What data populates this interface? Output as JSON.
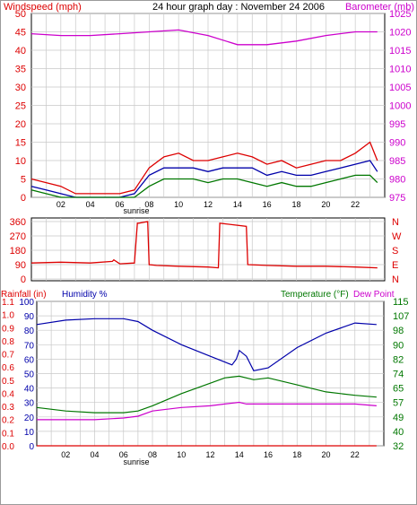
{
  "header": {
    "left_label": "Windspeed (mph)",
    "title": "24 hour graph day : November 24 2006",
    "right_label": "Barometer (mb)"
  },
  "colors": {
    "red": "#dd0000",
    "blue": "#0000aa",
    "green": "#007700",
    "magenta": "#cc00cc",
    "grid": "#c8c8c8"
  },
  "chart_data": [
    {
      "type": "line",
      "id": "wind-baro",
      "x_ticks": [
        "02",
        "04",
        "06",
        "08",
        "10",
        "12",
        "14",
        "16",
        "18",
        "20",
        "22"
      ],
      "sunrise_label": "sunrise",
      "left_axis": {
        "label": "Windspeed (mph)",
        "ticks": [
          0,
          5,
          10,
          15,
          20,
          25,
          30,
          35,
          40,
          45,
          50
        ],
        "ylim": [
          0,
          50
        ]
      },
      "right_axis": {
        "label": "Barometer (mb)",
        "ticks": [
          975,
          980,
          985,
          990,
          995,
          1000,
          1005,
          1010,
          1015,
          1020,
          1025
        ],
        "ylim": [
          975,
          1025
        ]
      },
      "series": [
        {
          "axis": "right",
          "color": "magenta",
          "x": [
            0,
            2,
            4,
            6,
            8,
            10,
            12,
            14,
            16,
            18,
            20,
            22,
            23.5
          ],
          "y": [
            1019.5,
            1019,
            1019,
            1019.5,
            1020,
            1020.5,
            1019,
            1016.5,
            1016.5,
            1017.5,
            1019,
            1020,
            1020
          ]
        },
        {
          "axis": "left",
          "color": "red",
          "x": [
            0,
            1,
            2,
            3,
            4,
            5,
            6,
            7,
            8,
            9,
            10,
            11,
            12,
            13,
            14,
            15,
            16,
            17,
            18,
            19,
            20,
            21,
            22,
            23,
            23.5
          ],
          "y": [
            5,
            4,
            3,
            1,
            1,
            1,
            1,
            2,
            8,
            11,
            12,
            10,
            10,
            11,
            12,
            11,
            9,
            10,
            8,
            9,
            10,
            10,
            12,
            15,
            10
          ]
        },
        {
          "axis": "left",
          "color": "blue",
          "x": [
            0,
            1,
            2,
            3,
            4,
            5,
            6,
            7,
            8,
            9,
            10,
            11,
            12,
            13,
            14,
            15,
            16,
            17,
            18,
            19,
            20,
            21,
            22,
            23,
            23.5
          ],
          "y": [
            3,
            2,
            1,
            0,
            0,
            0,
            0,
            1,
            6,
            8,
            8,
            8,
            7,
            8,
            8,
            8,
            6,
            7,
            6,
            6,
            7,
            8,
            9,
            10,
            7
          ]
        },
        {
          "axis": "left",
          "color": "green",
          "x": [
            0,
            1,
            2,
            3,
            4,
            5,
            6,
            7,
            8,
            9,
            10,
            11,
            12,
            13,
            14,
            15,
            16,
            17,
            18,
            19,
            20,
            21,
            22,
            23,
            23.5
          ],
          "y": [
            2,
            1,
            0,
            0,
            0,
            0,
            0,
            0,
            3,
            5,
            5,
            5,
            4,
            5,
            5,
            4,
            3,
            4,
            3,
            3,
            4,
            5,
            6,
            6,
            4
          ]
        }
      ]
    },
    {
      "type": "line",
      "id": "wind-direction",
      "left_axis": {
        "ticks": [
          0,
          90,
          180,
          270,
          360
        ],
        "ylim": [
          0,
          360
        ]
      },
      "right_axis": {
        "ticks": [
          "N",
          "W",
          "S",
          "E",
          "N"
        ]
      },
      "series": [
        {
          "color": "red",
          "x": [
            0,
            2,
            4,
            5.5,
            5.6,
            6,
            7,
            7.2,
            7.3,
            7.9,
            8,
            8.5,
            10,
            12,
            12.7,
            12.8,
            14.6,
            14.7,
            16,
            18,
            20,
            22,
            23.5
          ],
          "y": [
            100,
            105,
            100,
            110,
            120,
            95,
            100,
            350,
            350,
            360,
            90,
            85,
            80,
            75,
            70,
            350,
            330,
            90,
            85,
            80,
            80,
            75,
            70
          ]
        }
      ]
    },
    {
      "type": "line",
      "id": "rain-humidity-temp",
      "x_ticks": [
        "02",
        "04",
        "06",
        "08",
        "10",
        "12",
        "14",
        "16",
        "18",
        "20",
        "22"
      ],
      "sunrise_label": "sunrise",
      "header_left": [
        "Rainfall (in)",
        "Humidity %"
      ],
      "header_right": [
        "Temperature (°F)",
        "Dew Point"
      ],
      "rain_axis": {
        "ticks": [
          "0.0",
          "0.1",
          "0.2",
          "0.3",
          "0.4",
          "0.5",
          "0.6",
          "0.7",
          "0.8",
          "0.9",
          "1.0",
          "1.1"
        ],
        "ylim": [
          0,
          1.1
        ]
      },
      "humidity_axis": {
        "ticks": [
          0,
          10,
          20,
          30,
          40,
          50,
          60,
          70,
          80,
          90,
          100
        ],
        "ylim": [
          0,
          100
        ]
      },
      "temp_axis": {
        "ticks": [
          32,
          40,
          49,
          57,
          65,
          74,
          82,
          90,
          98,
          107,
          115
        ],
        "ylim": [
          32,
          115
        ]
      },
      "series": [
        {
          "name": "Humidity %",
          "axis": "humidity",
          "color": "blue",
          "x": [
            0,
            2,
            4,
            6,
            7,
            8,
            10,
            12,
            13,
            13.5,
            13.8,
            14,
            14.5,
            15,
            16,
            18,
            20,
            22,
            23.5
          ],
          "y": [
            84,
            87,
            88,
            88,
            86,
            80,
            70,
            62,
            58,
            56,
            60,
            66,
            62,
            52,
            54,
            68,
            78,
            85,
            84
          ]
        },
        {
          "name": "Temperature (°F)",
          "axis": "temp",
          "color": "green",
          "x": [
            0,
            2,
            4,
            6,
            7,
            8,
            10,
            12,
            13,
            14,
            15,
            16,
            18,
            20,
            22,
            23.5
          ],
          "y": [
            54,
            52,
            51,
            51,
            52,
            55,
            62,
            68,
            71,
            72,
            70,
            71,
            67,
            63,
            61,
            60
          ]
        },
        {
          "name": "Dew Point",
          "axis": "temp",
          "color": "magenta",
          "x": [
            0,
            2,
            4,
            6,
            7,
            8,
            10,
            12,
            13,
            14,
            14.5,
            15,
            16,
            18,
            20,
            22,
            23.5
          ],
          "y": [
            47,
            47,
            47,
            48,
            49,
            52,
            54,
            55,
            56,
            57,
            56,
            56,
            56,
            56,
            56,
            56,
            55
          ]
        },
        {
          "name": "Rainfall (in)",
          "axis": "rain",
          "color": "red",
          "x": [
            0,
            23.5
          ],
          "y": [
            0,
            0
          ]
        }
      ]
    }
  ]
}
